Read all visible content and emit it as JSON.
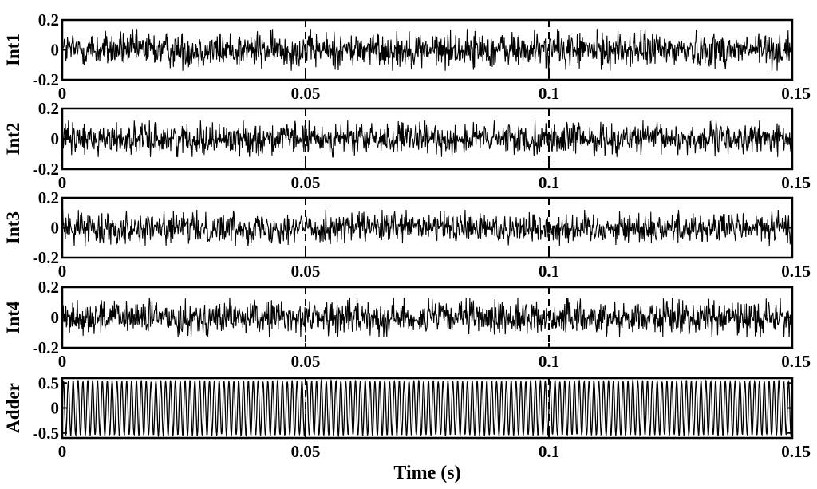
{
  "chart_data": [
    {
      "type": "line",
      "ylabel": "Int1",
      "xlim": [
        0,
        0.15
      ],
      "ylim": [
        -0.2,
        0.2
      ],
      "xticks": [
        0,
        0.05,
        0.1,
        0.15
      ],
      "xtick_labels": [
        "0",
        "0.05",
        "0.1",
        "0.15"
      ],
      "yticks": [
        -0.2,
        0,
        0.2
      ],
      "ytick_labels": [
        "-0.2",
        "0",
        "0.2"
      ],
      "grid": "vertical dashed at x ticks",
      "signal": {
        "kind": "noise",
        "amplitude": 0.14,
        "samples": 1400
      },
      "color": "#000000"
    },
    {
      "type": "line",
      "ylabel": "Int2",
      "xlim": [
        0,
        0.15
      ],
      "ylim": [
        -0.2,
        0.2
      ],
      "xticks": [
        0,
        0.05,
        0.1,
        0.15
      ],
      "xtick_labels": [
        "0",
        "0.05",
        "0.1",
        "0.15"
      ],
      "yticks": [
        -0.2,
        0,
        0.2
      ],
      "ytick_labels": [
        "-0.2",
        "0",
        "0.2"
      ],
      "grid": "vertical dashed at x ticks",
      "signal": {
        "kind": "noise",
        "amplitude": 0.12,
        "samples": 1400
      },
      "color": "#000000"
    },
    {
      "type": "line",
      "ylabel": "Int3",
      "xlim": [
        0,
        0.15
      ],
      "ylim": [
        -0.2,
        0.2
      ],
      "xticks": [
        0,
        0.05,
        0.1,
        0.15
      ],
      "xtick_labels": [
        "0",
        "0.05",
        "0.1",
        "0.15"
      ],
      "yticks": [
        -0.2,
        0,
        0.2
      ],
      "ytick_labels": [
        "-0.2",
        "0",
        "0.2"
      ],
      "grid": "vertical dashed at x ticks",
      "signal": {
        "kind": "noise",
        "amplitude": 0.12,
        "samples": 1400
      },
      "color": "#000000"
    },
    {
      "type": "line",
      "ylabel": "Int4",
      "xlim": [
        0,
        0.15
      ],
      "ylim": [
        -0.2,
        0.2
      ],
      "xticks": [
        0,
        0.05,
        0.1,
        0.15
      ],
      "xtick_labels": [
        "0",
        "0.05",
        "0.1",
        "0.15"
      ],
      "yticks": [
        -0.2,
        0,
        0.2
      ],
      "ytick_labels": [
        "-0.2",
        "0",
        "0.2"
      ],
      "grid": "vertical dashed at x ticks",
      "signal": {
        "kind": "noise",
        "amplitude": 0.13,
        "samples": 1400
      },
      "color": "#000000"
    },
    {
      "type": "line",
      "ylabel": "Adder",
      "xlabel": "Time (s)",
      "xlim": [
        0,
        0.15
      ],
      "ylim": [
        -0.6,
        0.6
      ],
      "xticks": [
        0,
        0.05,
        0.1,
        0.15
      ],
      "xtick_labels": [
        "0",
        "0.05",
        "0.1",
        "0.15"
      ],
      "yticks": [
        -0.5,
        0,
        0.5
      ],
      "ytick_labels": [
        "-0.5",
        "0",
        "0.5"
      ],
      "grid": "vertical dashed at x ticks",
      "signal": {
        "kind": "sine",
        "amplitude": 0.54,
        "frequency_hz": 1000,
        "noise": 0.02
      },
      "color": "#000000"
    }
  ]
}
